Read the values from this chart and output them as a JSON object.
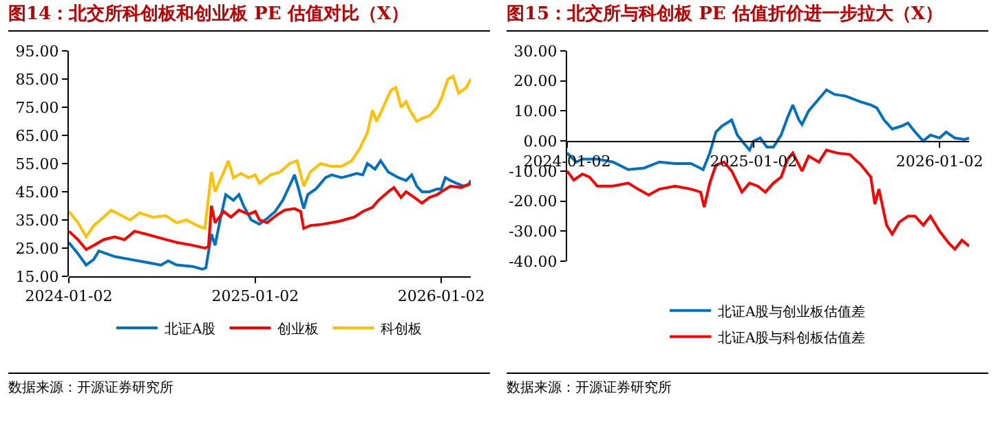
{
  "chart_data": [
    {
      "type": "line",
      "title": "图14：北交所科创板和创业板 PE 估值对比（X）",
      "legend": "bottom",
      "grid": false,
      "xlim": [
        "2024-01-02",
        "2026-03-01"
      ],
      "xticks": [
        "2024-01-02",
        "2025-01-02",
        "2026-01-02"
      ],
      "ylim": [
        15,
        95
      ],
      "yticks": [
        {
          "value": 15,
          "label": "15.00"
        },
        {
          "value": 25,
          "label": "25.00"
        },
        {
          "value": 35,
          "label": "35.00"
        },
        {
          "value": 45,
          "label": "45.00"
        },
        {
          "value": 55,
          "label": "55.00"
        },
        {
          "value": 65,
          "label": "65.00"
        },
        {
          "value": 75,
          "label": "75.00"
        },
        {
          "value": 85,
          "label": "85.00"
        },
        {
          "value": 95,
          "label": "95.00"
        }
      ],
      "annotations": [
        "数据来源：开源证券研究所"
      ],
      "series": [
        {
          "name": "北证A股",
          "color": "#0070c0",
          "x": [
            "2024-01-02",
            "2024-01-20",
            "2024-02-05",
            "2024-02-20",
            "2024-03-01",
            "2024-04-01",
            "2024-05-01",
            "2024-06-01",
            "2024-07-01",
            "2024-07-15",
            "2024-08-01",
            "2024-09-01",
            "2024-09-20",
            "2024-09-27",
            "2024-10-08",
            "2024-10-15",
            "2024-10-25",
            "2024-11-05",
            "2024-11-20",
            "2024-12-01",
            "2024-12-10",
            "2024-12-25",
            "2025-01-10",
            "2025-01-25",
            "2025-02-10",
            "2025-02-25",
            "2025-03-10",
            "2025-03-20",
            "2025-03-28",
            "2025-04-07",
            "2025-04-15",
            "2025-05-01",
            "2025-05-20",
            "2025-06-01",
            "2025-06-20",
            "2025-07-01",
            "2025-07-20",
            "2025-08-01",
            "2025-08-10",
            "2025-08-25",
            "2025-09-05",
            "2025-09-20",
            "2025-10-10",
            "2025-10-25",
            "2025-11-05",
            "2025-11-15",
            "2025-11-25",
            "2025-12-10",
            "2025-12-25",
            "2026-01-02",
            "2026-01-10",
            "2026-01-20",
            "2026-02-01",
            "2026-02-15",
            "2026-02-25",
            "2026-03-01"
          ],
          "values": [
            27,
            23,
            19,
            21,
            24,
            22,
            21,
            20,
            19,
            20.5,
            19,
            18.5,
            17.5,
            18,
            30,
            26,
            35,
            44,
            42,
            44,
            40,
            35,
            33.5,
            35.5,
            38,
            42,
            47,
            51,
            46,
            39,
            44,
            46,
            50,
            51,
            50,
            50.5,
            51.5,
            51,
            55,
            53,
            56,
            52,
            50,
            49,
            51,
            47,
            45,
            45,
            46,
            46,
            50,
            49,
            48,
            47,
            47.5,
            49
          ]
        },
        {
          "name": "创业板",
          "color": "#ff0000",
          "x": [
            "2024-01-02",
            "2024-01-20",
            "2024-02-05",
            "2024-02-20",
            "2024-03-10",
            "2024-04-01",
            "2024-04-20",
            "2024-05-10",
            "2024-06-01",
            "2024-07-01",
            "2024-08-01",
            "2024-09-01",
            "2024-09-25",
            "2024-10-02",
            "2024-10-08",
            "2024-10-15",
            "2024-11-01",
            "2024-11-15",
            "2024-12-01",
            "2024-12-20",
            "2025-01-02",
            "2025-01-10",
            "2025-01-25",
            "2025-02-15",
            "2025-03-01",
            "2025-03-20",
            "2025-04-01",
            "2025-04-07",
            "2025-04-20",
            "2025-05-15",
            "2025-06-15",
            "2025-07-15",
            "2025-08-01",
            "2025-08-20",
            "2025-09-01",
            "2025-09-20",
            "2025-10-01",
            "2025-10-15",
            "2025-10-25",
            "2025-11-10",
            "2025-11-25",
            "2025-12-10",
            "2025-12-25",
            "2026-01-02",
            "2026-01-20",
            "2026-02-10",
            "2026-03-01"
          ],
          "values": [
            31,
            28,
            24.5,
            26,
            28,
            29,
            28,
            31,
            30,
            28.5,
            27,
            26,
            25,
            25.5,
            40,
            34,
            38,
            36,
            38.5,
            37,
            38,
            35,
            34,
            37,
            38.5,
            39,
            38,
            32,
            33,
            33.5,
            34.5,
            36,
            38,
            39.5,
            42,
            45,
            46.5,
            43,
            45,
            43,
            41,
            43,
            44,
            45,
            47,
            46.5,
            48
          ]
        },
        {
          "name": "科创板",
          "color": "#ffc000",
          "x": [
            "2024-01-02",
            "2024-01-20",
            "2024-02-05",
            "2024-02-20",
            "2024-03-10",
            "2024-03-25",
            "2024-04-10",
            "2024-05-01",
            "2024-05-20",
            "2024-06-15",
            "2024-07-10",
            "2024-08-01",
            "2024-08-20",
            "2024-09-10",
            "2024-09-25",
            "2024-10-08",
            "2024-10-15",
            "2024-11-01",
            "2024-11-10",
            "2024-11-20",
            "2024-12-05",
            "2024-12-20",
            "2025-01-02",
            "2025-01-10",
            "2025-02-01",
            "2025-02-20",
            "2025-03-10",
            "2025-03-25",
            "2025-04-07",
            "2025-04-20",
            "2025-05-10",
            "2025-06-01",
            "2025-06-20",
            "2025-07-10",
            "2025-07-25",
            "2025-08-10",
            "2025-08-20",
            "2025-08-28",
            "2025-09-10",
            "2025-09-25",
            "2025-10-05",
            "2025-10-15",
            "2025-10-25",
            "2025-11-01",
            "2025-11-15",
            "2025-11-25",
            "2025-12-10",
            "2025-12-25",
            "2026-01-02",
            "2026-01-15",
            "2026-01-25",
            "2026-02-05",
            "2026-02-20",
            "2026-03-01"
          ],
          "values": [
            38,
            34,
            29,
            33,
            36,
            38.5,
            37,
            35,
            37.5,
            36,
            36.5,
            34,
            35,
            33,
            32,
            52,
            45,
            52,
            56,
            50,
            51.5,
            50,
            51,
            48,
            51,
            52,
            55,
            56,
            47,
            52,
            55,
            54,
            54,
            56,
            60,
            66,
            74,
            70,
            75,
            81,
            82,
            75,
            77,
            74,
            70,
            71,
            72,
            75,
            78,
            85,
            86,
            80,
            82,
            85
          ]
        }
      ]
    },
    {
      "type": "line",
      "title": "图15：北交所与科创板 PE 估值折价进一步拉大（X）",
      "legend": "bottom",
      "grid": false,
      "xlim": [
        "2024-01-02",
        "2026-03-01"
      ],
      "xticks": [
        "2024-01-02",
        "2025-01-02",
        "2026-01-02"
      ],
      "ylim": [
        -40,
        30
      ],
      "yticks": [
        {
          "value": -40,
          "label": "-40.00"
        },
        {
          "value": -30,
          "label": "-30.00"
        },
        {
          "value": -20,
          "label": "-20.00"
        },
        {
          "value": -10,
          "label": "-10.00"
        },
        {
          "value": 0,
          "label": "0.00"
        },
        {
          "value": 10,
          "label": "10.00"
        },
        {
          "value": 20,
          "label": "20.00"
        },
        {
          "value": 30,
          "label": "30.00"
        }
      ],
      "annotations": [
        "数据来源：开源证券研究所"
      ],
      "series": [
        {
          "name": "北证A股与创业板估值差",
          "color": "#0070c0",
          "x": [
            "2024-01-02",
            "2024-01-20",
            "2024-02-01",
            "2024-03-01",
            "2024-04-01",
            "2024-05-01",
            "2024-06-01",
            "2024-07-01",
            "2024-08-01",
            "2024-09-01",
            "2024-09-25",
            "2024-10-08",
            "2024-10-20",
            "2024-11-01",
            "2024-11-20",
            "2024-12-01",
            "2024-12-15",
            "2024-12-25",
            "2025-01-02",
            "2025-01-15",
            "2025-01-28",
            "2025-02-10",
            "2025-02-25",
            "2025-03-10",
            "2025-03-20",
            "2025-04-01",
            "2025-04-07",
            "2025-04-20",
            "2025-05-10",
            "2025-05-25",
            "2025-06-10",
            "2025-07-01",
            "2025-08-01",
            "2025-08-20",
            "2025-09-01",
            "2025-09-15",
            "2025-10-01",
            "2025-10-20",
            "2025-11-01",
            "2025-11-15",
            "2025-12-01",
            "2025-12-15",
            "2026-01-02",
            "2026-01-15",
            "2026-02-01",
            "2026-02-20",
            "2026-03-01"
          ],
          "values": [
            -4,
            -7,
            -6,
            -6,
            -7,
            -9.5,
            -9,
            -7,
            -7.5,
            -7.5,
            -9.5,
            -4,
            3,
            5,
            7,
            2,
            -1,
            -3,
            0,
            1,
            -2,
            -2,
            2,
            8,
            12,
            7,
            5.5,
            10,
            14,
            17,
            15.5,
            15,
            13,
            12,
            11,
            7,
            4,
            5,
            6,
            3,
            0,
            2,
            1,
            3,
            1,
            0.5,
            1
          ]
        },
        {
          "name": "北证A股与科创板估值差",
          "color": "#ff0000",
          "x": [
            "2024-01-02",
            "2024-01-15",
            "2024-02-01",
            "2024-02-15",
            "2024-03-01",
            "2024-04-01",
            "2024-05-01",
            "2024-05-20",
            "2024-06-10",
            "2024-07-01",
            "2024-08-01",
            "2024-09-01",
            "2024-09-20",
            "2024-09-27",
            "2024-10-08",
            "2024-10-20",
            "2024-11-05",
            "2024-11-20",
            "2024-12-10",
            "2024-12-25",
            "2025-01-10",
            "2025-01-25",
            "2025-02-10",
            "2025-02-25",
            "2025-03-10",
            "2025-03-20",
            "2025-04-07",
            "2025-04-20",
            "2025-05-10",
            "2025-05-25",
            "2025-06-15",
            "2025-07-10",
            "2025-08-01",
            "2025-08-20",
            "2025-08-28",
            "2025-09-05",
            "2025-09-20",
            "2025-10-01",
            "2025-10-15",
            "2025-11-01",
            "2025-11-15",
            "2025-12-01",
            "2025-12-15",
            "2026-01-02",
            "2026-01-20",
            "2026-02-01",
            "2026-02-15",
            "2026-03-01"
          ],
          "values": [
            -10,
            -13,
            -11,
            -12,
            -15,
            -15,
            -14,
            -16,
            -18,
            -16,
            -15,
            -16,
            -17,
            -22,
            -14,
            -8,
            -7,
            -10,
            -17,
            -14,
            -15,
            -17,
            -14,
            -12,
            -6,
            -4,
            -10,
            -5,
            -7,
            -3,
            -4,
            -4.5,
            -8,
            -12,
            -21,
            -16,
            -28,
            -31,
            -27,
            -25,
            -25,
            -28,
            -25,
            -30,
            -34,
            -36,
            -33,
            -35
          ]
        }
      ]
    }
  ]
}
